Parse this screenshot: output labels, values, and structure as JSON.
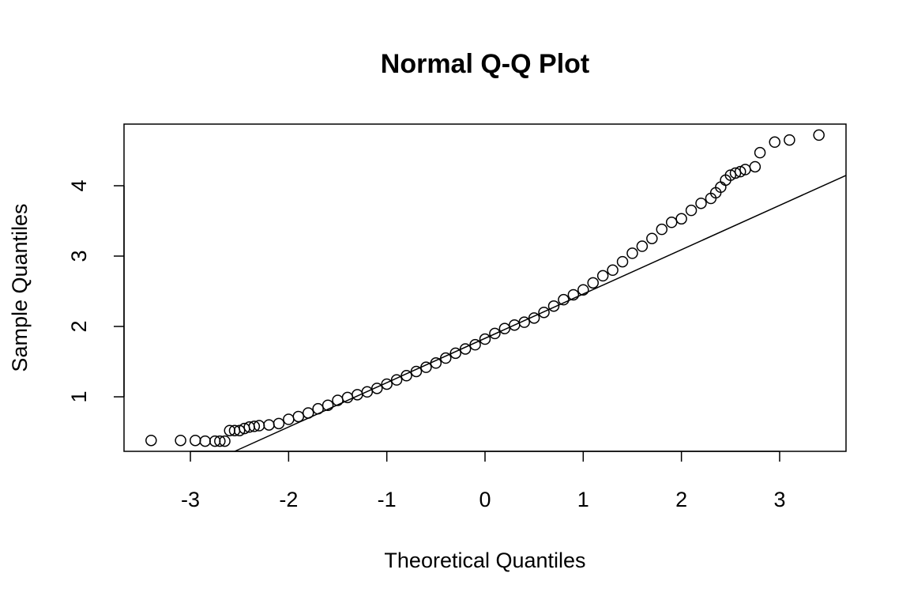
{
  "chart_data": {
    "type": "scatter",
    "title": "Normal Q-Q Plot",
    "x_label": "Theoretical Quantiles",
    "y_label": "Sample Quantiles",
    "x": [
      -3.4,
      -3.1,
      -2.95,
      -2.85,
      -2.75,
      -2.7,
      -2.65,
      -2.6,
      -2.55,
      -2.5,
      -2.45,
      -2.4,
      -2.35,
      -2.3,
      -2.2,
      -2.1,
      -2.0,
      -1.9,
      -1.8,
      -1.7,
      -1.6,
      -1.5,
      -1.4,
      -1.3,
      -1.2,
      -1.1,
      -1.0,
      -0.9,
      -0.8,
      -0.7,
      -0.6,
      -0.5,
      -0.4,
      -0.3,
      -0.2,
      -0.1,
      0,
      0.1,
      0.2,
      0.3,
      0.4,
      0.5,
      0.6,
      0.7,
      0.8,
      0.9,
      1.0,
      1.1,
      1.2,
      1.3,
      1.4,
      1.5,
      1.6,
      1.7,
      1.8,
      1.9,
      2.0,
      2.1,
      2.2,
      2.3,
      2.35,
      2.4,
      2.45,
      2.5,
      2.55,
      2.6,
      2.65,
      2.75,
      2.8,
      2.95,
      3.1,
      3.4
    ],
    "values": [
      0.38,
      0.38,
      0.38,
      0.37,
      0.37,
      0.37,
      0.37,
      0.52,
      0.52,
      0.52,
      0.55,
      0.57,
      0.58,
      0.59,
      0.6,
      0.62,
      0.68,
      0.72,
      0.77,
      0.83,
      0.88,
      0.95,
      0.99,
      1.03,
      1.07,
      1.12,
      1.18,
      1.24,
      1.3,
      1.36,
      1.42,
      1.48,
      1.55,
      1.62,
      1.68,
      1.74,
      1.82,
      1.9,
      1.97,
      2.02,
      2.06,
      2.12,
      2.2,
      2.29,
      2.38,
      2.45,
      2.52,
      2.62,
      2.72,
      2.8,
      2.92,
      3.04,
      3.14,
      3.25,
      3.38,
      3.48,
      3.53,
      3.65,
      3.75,
      3.82,
      3.9,
      3.98,
      4.08,
      4.15,
      4.18,
      4.2,
      4.23,
      4.27,
      4.47,
      4.62,
      4.65,
      4.72
    ],
    "reference_line": {
      "slope": 0.63,
      "intercept": 1.831
    },
    "color": "#000000",
    "xlim": [
      -3.676,
      3.676
    ],
    "ylim": [
      0.225,
      4.876
    ],
    "xticks": [
      -3,
      -2,
      -1,
      0,
      1,
      2,
      3
    ],
    "yticks": [
      1,
      2,
      3,
      4
    ]
  }
}
